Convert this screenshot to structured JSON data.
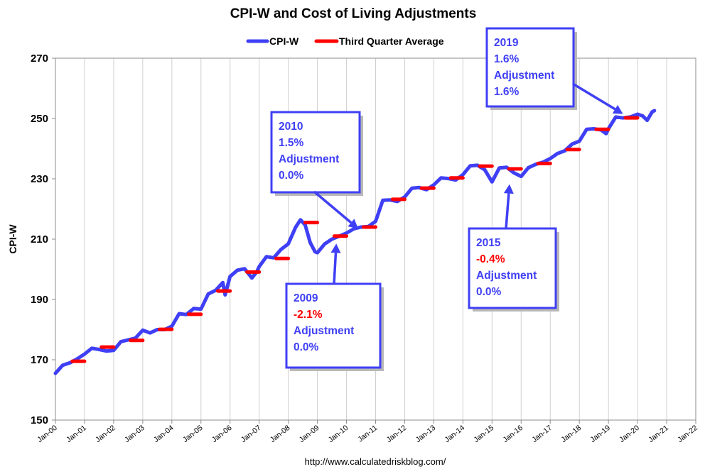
{
  "chart_data": {
    "type": "line",
    "title": "CPI-W and Cost of Living Adjustments",
    "xlabel": "",
    "ylabel": "CPI-W",
    "ylim": [
      150,
      270
    ],
    "yticks": [
      150,
      170,
      190,
      210,
      230,
      250,
      270
    ],
    "xlim": [
      2000,
      2022
    ],
    "xtick_labels": [
      "Jan-00",
      "Jan-01",
      "Jan-02",
      "Jan-03",
      "Jan-04",
      "Jan-05",
      "Jan-06",
      "Jan-07",
      "Jan-08",
      "Jan-09",
      "Jan-10",
      "Jan-11",
      "Jan-12",
      "Jan-13",
      "Jan-14",
      "Jan-15",
      "Jan-16",
      "Jan-17",
      "Jan-18",
      "Jan-19",
      "Jan-20",
      "Jan-21",
      "Jan-22"
    ],
    "grid": "vertical",
    "legend_position": "top-center",
    "source": "http://www.calculatedriskblog.com/",
    "series": [
      {
        "name": "CPI-W",
        "color": "#3F3FF5",
        "x": [
          2000.0,
          2000.25,
          2000.5,
          2000.75,
          2001.0,
          2001.25,
          2001.5,
          2001.75,
          2002.0,
          2002.25,
          2002.5,
          2002.75,
          2003.0,
          2003.25,
          2003.5,
          2003.75,
          2004.0,
          2004.25,
          2004.5,
          2004.75,
          2005.0,
          2005.25,
          2005.5,
          2005.75,
          2005.83,
          2006.0,
          2006.25,
          2006.5,
          2006.75,
          2006.92,
          2007.0,
          2007.25,
          2007.5,
          2007.75,
          2008.0,
          2008.25,
          2008.42,
          2008.58,
          2008.75,
          2008.92,
          2009.0,
          2009.25,
          2009.5,
          2009.75,
          2010.0,
          2010.25,
          2010.5,
          2010.75,
          2011.0,
          2011.25,
          2011.5,
          2011.75,
          2012.0,
          2012.25,
          2012.5,
          2012.75,
          2013.0,
          2013.25,
          2013.5,
          2013.75,
          2014.0,
          2014.25,
          2014.5,
          2014.75,
          2015.0,
          2015.25,
          2015.5,
          2015.75,
          2016.0,
          2016.25,
          2016.5,
          2016.75,
          2017.0,
          2017.25,
          2017.5,
          2017.75,
          2018.0,
          2018.25,
          2018.5,
          2018.75,
          2018.92,
          2019.0,
          2019.25,
          2019.5,
          2019.75,
          2020.0,
          2020.17,
          2020.33,
          2020.5,
          2020.58
        ],
        "y": [
          165.5,
          168.2,
          169.0,
          170.3,
          171.9,
          173.8,
          173.4,
          172.9,
          173.1,
          176.0,
          176.6,
          177.2,
          179.8,
          178.9,
          180.0,
          180.0,
          181.1,
          185.3,
          185.0,
          187.0,
          186.8,
          191.8,
          193.0,
          195.6,
          191.5,
          197.6,
          199.7,
          200.2,
          197.1,
          199.2,
          200.9,
          204.2,
          203.8,
          206.6,
          208.4,
          213.9,
          216.4,
          214.7,
          208.9,
          205.8,
          205.5,
          208.4,
          210.0,
          211.0,
          212.0,
          213.4,
          214.0,
          214.2,
          215.9,
          222.9,
          223.0,
          222.5,
          224.0,
          226.9,
          227.1,
          226.4,
          228.0,
          230.3,
          230.1,
          229.6,
          231.4,
          234.3,
          234.5,
          233.0,
          229.0,
          233.6,
          233.8,
          232.0,
          230.8,
          233.7,
          234.8,
          235.5,
          236.7,
          238.4,
          239.3,
          241.5,
          242.5,
          246.4,
          246.6,
          246.2,
          245.0,
          246.6,
          250.5,
          250.2,
          250.5,
          251.4,
          250.9,
          249.4,
          252.2,
          252.6
        ]
      },
      {
        "name": "Third Quarter Average",
        "color": "#FF0000",
        "segments": [
          {
            "x": [
              2000.58,
              2001.0
            ],
            "y": 169.5
          },
          {
            "x": [
              2001.58,
              2002.0
            ],
            "y": 174.2
          },
          {
            "x": [
              2002.58,
              2003.0
            ],
            "y": 176.4
          },
          {
            "x": [
              2003.58,
              2004.0
            ],
            "y": 180.1
          },
          {
            "x": [
              2004.58,
              2005.0
            ],
            "y": 185.1
          },
          {
            "x": [
              2005.58,
              2006.0
            ],
            "y": 192.8
          },
          {
            "x": [
              2006.58,
              2007.0
            ],
            "y": 199.1
          },
          {
            "x": [
              2007.58,
              2008.0
            ],
            "y": 203.6
          },
          {
            "x": [
              2008.58,
              2009.0
            ],
            "y": 215.5
          },
          {
            "x": [
              2009.58,
              2010.0
            ],
            "y": 211.0
          },
          {
            "x": [
              2010.58,
              2011.0
            ],
            "y": 214.0
          },
          {
            "x": [
              2011.58,
              2012.0
            ],
            "y": 223.2
          },
          {
            "x": [
              2012.58,
              2013.0
            ],
            "y": 226.9
          },
          {
            "x": [
              2013.58,
              2014.0
            ],
            "y": 230.3
          },
          {
            "x": [
              2014.58,
              2015.0
            ],
            "y": 234.2
          },
          {
            "x": [
              2015.58,
              2016.0
            ],
            "y": 233.3
          },
          {
            "x": [
              2016.58,
              2017.0
            ],
            "y": 235.1
          },
          {
            "x": [
              2017.58,
              2018.0
            ],
            "y": 239.7
          },
          {
            "x": [
              2018.58,
              2019.0
            ],
            "y": 246.4
          },
          {
            "x": [
              2019.58,
              2020.0
            ],
            "y": 250.2
          }
        ]
      }
    ],
    "annotations": [
      {
        "id": "2019",
        "year": "2019",
        "change": "1.6%",
        "change_color": "#3F3FF5",
        "label": "Adjustment",
        "adjustment": "1.6%",
        "arrow_to": {
          "x": 2019.5,
          "y": 251.5
        }
      },
      {
        "id": "2010",
        "year": "2010",
        "change": "1.5%",
        "change_color": "#3F3FF5",
        "label": "Adjustment",
        "adjustment": "0.0%",
        "arrow_to": {
          "x": 2010.4,
          "y": 213.5
        }
      },
      {
        "id": "2009",
        "year": "2009",
        "change": "-2.1%",
        "change_color": "#FF0000",
        "label": "Adjustment",
        "adjustment": "0.0%",
        "arrow_to": {
          "x": 2009.65,
          "y": 208.5
        }
      },
      {
        "id": "2015",
        "year": "2015",
        "change": "-0.4%",
        "change_color": "#FF0000",
        "label": "Adjustment",
        "adjustment": "0.0%",
        "arrow_to": {
          "x": 2015.6,
          "y": 228.2
        }
      }
    ]
  }
}
